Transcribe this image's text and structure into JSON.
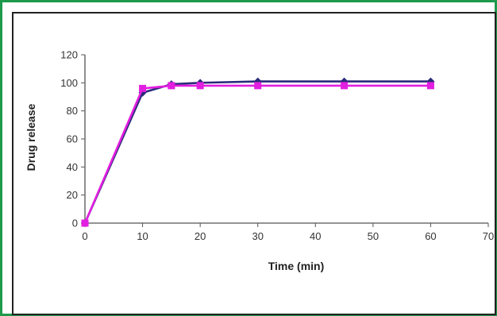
{
  "chart_data": {
    "type": "line",
    "title": "",
    "xlabel": "Time (min)",
    "ylabel": "Drug release",
    "xlim": [
      0,
      70
    ],
    "ylim": [
      0,
      120
    ],
    "xticks": [
      0,
      10,
      20,
      30,
      40,
      50,
      60,
      70
    ],
    "yticks": [
      0,
      20,
      40,
      60,
      80,
      100,
      120
    ],
    "grid": false,
    "legend": "none",
    "series": [
      {
        "color": "#2a2a7a",
        "marker": "diamond",
        "x": [
          0,
          10,
          15,
          20,
          30,
          45,
          60
        ],
        "y": [
          0,
          93,
          99,
          100,
          101,
          101,
          101
        ]
      },
      {
        "color": "#e21ee0",
        "marker": "square",
        "x": [
          0,
          10,
          15,
          20,
          30,
          45,
          60
        ],
        "y": [
          0,
          96,
          98,
          98,
          98,
          98,
          98
        ]
      }
    ]
  }
}
